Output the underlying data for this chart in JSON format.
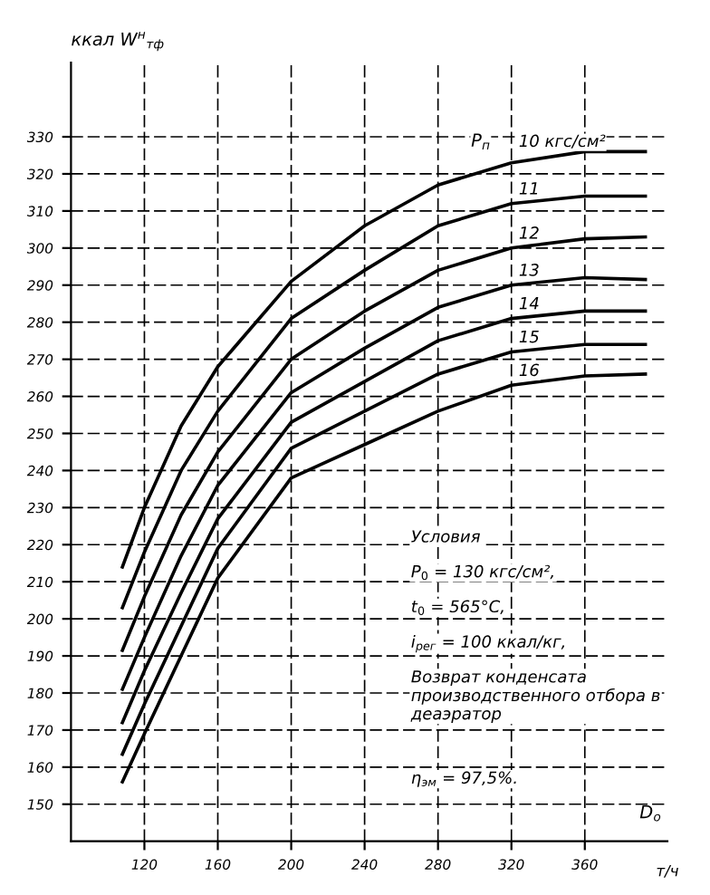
{
  "chart_data": {
    "type": "line",
    "ylabel": "ккал W$^{н}$$_{тф}$",
    "xlabel": "D$_{о}$",
    "legend_title": "P$_{п}$",
    "x": [
      108,
      120,
      140,
      160,
      200,
      240,
      280,
      320,
      360,
      393
    ],
    "series": [
      {
        "name": "10 кгс/см²",
        "color": "#000000",
        "values": [
          214,
          230,
          252,
          268,
          291,
          306,
          317,
          323,
          326,
          326
        ]
      },
      {
        "name": "11",
        "color": "#000000",
        "values": [
          203,
          218,
          240,
          256,
          281,
          294,
          306,
          312,
          314,
          314
        ]
      },
      {
        "name": "12",
        "color": "#000000",
        "values": [
          191.5,
          206,
          228,
          245,
          270,
          283,
          294,
          300,
          302.5,
          303
        ]
      },
      {
        "name": "13",
        "color": "#000000",
        "values": [
          181,
          195,
          217,
          236,
          261,
          273,
          284,
          290,
          292,
          291.5
        ]
      },
      {
        "name": "14",
        "color": "#000000",
        "values": [
          172,
          186,
          207,
          227,
          253,
          264,
          275,
          281,
          283,
          283
        ]
      },
      {
        "name": "15",
        "color": "#000000",
        "values": [
          163.5,
          177,
          198,
          219,
          246,
          256,
          266,
          272,
          274,
          274
        ]
      },
      {
        "name": "16",
        "color": "#000000",
        "values": [
          156,
          169,
          190,
          211,
          238,
          247,
          256,
          263,
          265.5,
          266
        ]
      }
    ],
    "xlim": [
      80,
      405
    ],
    "ylim": [
      140,
      350
    ],
    "xticks": [
      120,
      160,
      200,
      240,
      280,
      320,
      360
    ],
    "yticks": [
      150,
      160,
      170,
      180,
      190,
      200,
      210,
      220,
      230,
      240,
      250,
      260,
      270,
      280,
      290,
      300,
      310,
      320,
      330
    ],
    "grid": true,
    "line_style": "solid",
    "marker": "none",
    "legend": false,
    "annotations": [
      "т/ч",
      "Условия",
      "P$_{0}$ = 130 кгс/см²,",
      "t$_{0}$ = 565°C,",
      "i$_{рег}$ = 100 ккал/кг,",
      "Возврат конденсата производственного отбора в деаэратор",
      "η$_{эм}$ = 97,5%."
    ]
  }
}
